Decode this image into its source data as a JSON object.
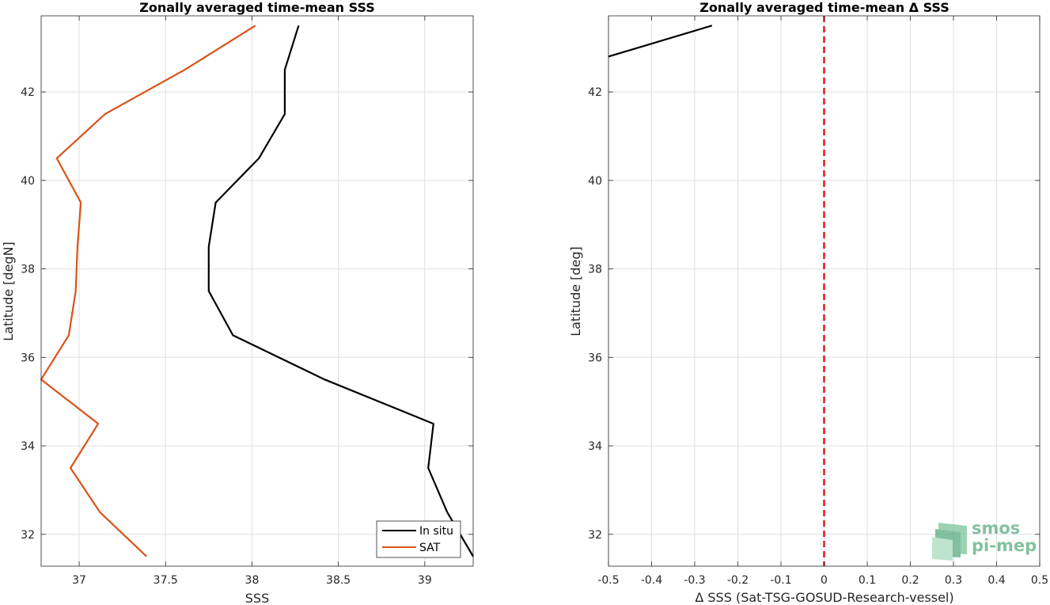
{
  "chart_data": [
    {
      "type": "line",
      "title": "Zonally averaged time-mean SSS",
      "xlabel": "SSS",
      "ylabel": "Latitude [degN]",
      "xlim": [
        36.78,
        39.28
      ],
      "ylim": [
        31.28,
        43.72
      ],
      "x_ticks": [
        37,
        37.5,
        38,
        38.5,
        39
      ],
      "x_tick_labels": [
        "37",
        "37.5",
        "38",
        "38.5",
        "39"
      ],
      "y_ticks": [
        32,
        34,
        36,
        38,
        40,
        42
      ],
      "y_tick_labels": [
        "32",
        "34",
        "36",
        "38",
        "40",
        "42"
      ],
      "grid": true,
      "legend_position": "bottom-right",
      "series": [
        {
          "name": "In situ",
          "color": "#000000",
          "points": [
            {
              "x": 38.27,
              "y": 43.5
            },
            {
              "x": 38.19,
              "y": 42.5
            },
            {
              "x": 38.19,
              "y": 41.5
            },
            {
              "x": 38.04,
              "y": 40.5
            },
            {
              "x": 37.79,
              "y": 39.5
            },
            {
              "x": 37.75,
              "y": 38.5
            },
            {
              "x": 37.75,
              "y": 37.5
            },
            {
              "x": 37.89,
              "y": 36.5
            },
            {
              "x": 38.42,
              "y": 35.5
            },
            {
              "x": 39.05,
              "y": 34.5
            },
            {
              "x": 39.02,
              "y": 33.5
            },
            {
              "x": 39.13,
              "y": 32.5
            },
            {
              "x": 39.28,
              "y": 31.5
            }
          ]
        },
        {
          "name": "SAT",
          "color": "#D95319",
          "points": [
            {
              "x": 38.02,
              "y": 43.5
            },
            {
              "x": 37.61,
              "y": 42.5
            },
            {
              "x": 37.15,
              "y": 41.5
            },
            {
              "x": 36.87,
              "y": 40.5
            },
            {
              "x": 37.01,
              "y": 39.5
            },
            {
              "x": 36.99,
              "y": 38.5
            },
            {
              "x": 36.98,
              "y": 37.5
            },
            {
              "x": 36.94,
              "y": 36.5
            },
            {
              "x": 36.78,
              "y": 35.5
            },
            {
              "x": 37.11,
              "y": 34.5
            },
            {
              "x": 36.95,
              "y": 33.5
            },
            {
              "x": 37.12,
              "y": 32.5
            },
            {
              "x": 37.39,
              "y": 31.5
            }
          ]
        }
      ]
    },
    {
      "type": "line",
      "title": "Zonally averaged time-mean Δ SSS",
      "xlabel": "Δ SSS (Sat-TSG-GOSUD-Research-vessel)",
      "ylabel": "Latitude [deg]",
      "xlim": [
        -0.5,
        0.5
      ],
      "ylim": [
        31.28,
        43.72
      ],
      "x_ticks": [
        -0.5,
        -0.4,
        -0.3,
        -0.2,
        -0.1,
        0,
        0.1,
        0.2,
        0.3,
        0.4,
        0.5
      ],
      "x_tick_labels": [
        "-0.5",
        "-0.4",
        "-0.3",
        "-0.2",
        "-0.1",
        "0",
        "0.1",
        "0.2",
        "0.3",
        "0.4",
        "0.5"
      ],
      "y_ticks": [
        32,
        34,
        36,
        38,
        40,
        42
      ],
      "y_tick_labels": [
        "32",
        "34",
        "36",
        "38",
        "40",
        "42"
      ],
      "grid": true,
      "series": [
        {
          "name": "",
          "color": "#000000",
          "points": [
            {
              "x": -0.26,
              "y": 43.5
            },
            {
              "x": -0.5,
              "y": 42.8
            }
          ]
        }
      ],
      "reference_line": {
        "x": 0,
        "style": "dashed",
        "color": "#E41A1C"
      }
    }
  ],
  "logo": {
    "line1": "smos",
    "line2": "pi-mep",
    "color": "#5aab7f"
  }
}
